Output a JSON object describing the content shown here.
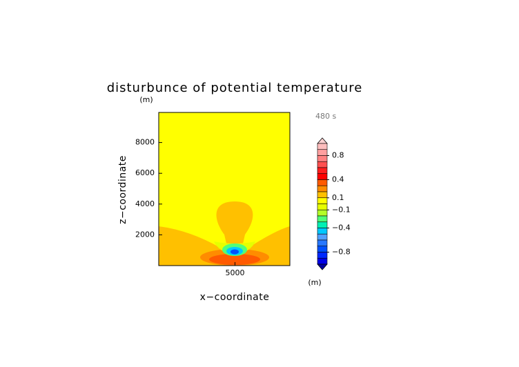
{
  "chart_data": {
    "type": "contour",
    "title": "disturbunce of potential temperature",
    "x_label": "x−coordinate",
    "y_label": "z−coordinate",
    "x_unit": "(m)",
    "y_unit": "(m)",
    "time_label": "480 s",
    "xlim": [
      0,
      8600
    ],
    "ylim": [
      0,
      10000
    ],
    "xticks": [
      5000
    ],
    "yticks": [
      2000,
      4000,
      6000,
      8000
    ],
    "colorbar": {
      "lim": [
        -1,
        1
      ],
      "colors": [
        "#ffbebe",
        "#ffa0a0",
        "#ff8282",
        "#ff5050",
        "#ff1e1e",
        "#ff0000",
        "#ff5a00",
        "#ff8c00",
        "#ffc000",
        "#ffff00",
        "#e6ff00",
        "#b4ff28",
        "#50ff78",
        "#00f0b4",
        "#00c8ff",
        "#50a0ff",
        "#2878ff",
        "#0050ff",
        "#0028ff",
        "#0000e6"
      ],
      "over_color": "#ffd2d2",
      "under_color": "#0000a0",
      "ticks": [
        0.8,
        0.4,
        0.1,
        {
          "value": -0.1,
          "label": "−0.1"
        },
        {
          "value": -0.4,
          "label": "−0.4"
        },
        {
          "value": -0.8,
          "label": "−0.8"
        }
      ]
    }
  }
}
